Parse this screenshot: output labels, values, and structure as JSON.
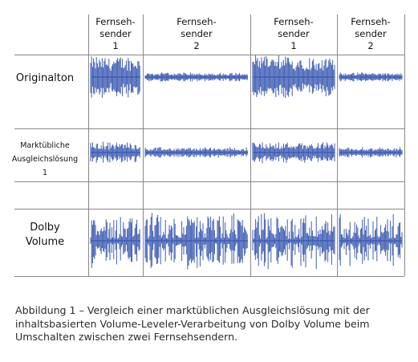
{
  "columns": [
    {
      "line1": "Fernseh-",
      "line2": "sender",
      "line3": "1"
    },
    {
      "line1": "Fernseh-",
      "line2": "sender",
      "line3": "2"
    },
    {
      "line1": "Fernseh-",
      "line2": "sender",
      "line3": "1"
    },
    {
      "line1": "Fernseh-",
      "line2": "sender",
      "line3": "2"
    }
  ],
  "rows": [
    {
      "label_lines": [
        "Originalton"
      ],
      "loudness": [
        0.95,
        0.2,
        0.95,
        0.2
      ]
    },
    {
      "label_lines": [
        "Marktübliche",
        "Ausgleichslösung",
        "1"
      ],
      "loudness": [
        0.7,
        0.35,
        0.7,
        0.35
      ]
    },
    {
      "label_lines": [
        "Dolby",
        "Volume"
      ],
      "loudness": [
        0.85,
        0.85,
        0.85,
        0.85
      ]
    }
  ],
  "caption": "Abbildung 1 – Vergleich einer marktüblichen Ausgleichslösung mit der inhaltsbasierten Volume-Leveler-Verarbeitung von Dolby Volume beim Umschalten zwischen zwei Fernsehsendern.",
  "colors": {
    "waveform": "#3f5db3",
    "grid": "#888888",
    "text": "#111111"
  }
}
